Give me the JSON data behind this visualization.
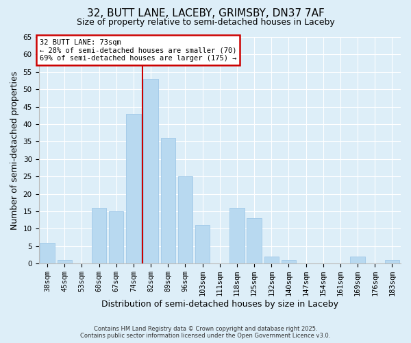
{
  "title": "32, BUTT LANE, LACEBY, GRIMSBY, DN37 7AF",
  "subtitle": "Size of property relative to semi-detached houses in Laceby",
  "xlabel": "Distribution of semi-detached houses by size in Laceby",
  "ylabel": "Number of semi-detached properties",
  "bar_labels": [
    "38sqm",
    "45sqm",
    "53sqm",
    "60sqm",
    "67sqm",
    "74sqm",
    "82sqm",
    "89sqm",
    "96sqm",
    "103sqm",
    "111sqm",
    "118sqm",
    "125sqm",
    "132sqm",
    "140sqm",
    "147sqm",
    "154sqm",
    "161sqm",
    "169sqm",
    "176sqm",
    "183sqm"
  ],
  "bar_values": [
    6,
    1,
    0,
    16,
    15,
    43,
    53,
    36,
    25,
    11,
    0,
    16,
    13,
    2,
    1,
    0,
    0,
    0,
    2,
    0,
    1
  ],
  "bar_color": "#b8d9f0",
  "bar_edge_color": "#9fc8e8",
  "vline_color": "#cc0000",
  "vline_bar_index": 5,
  "annotation_title": "32 BUTT LANE: 73sqm",
  "annotation_line1": "← 28% of semi-detached houses are smaller (70)",
  "annotation_line2": "69% of semi-detached houses are larger (175) →",
  "annotation_box_facecolor": "#ffffff",
  "annotation_box_edgecolor": "#cc0000",
  "ylim": [
    0,
    65
  ],
  "yticks": [
    0,
    5,
    10,
    15,
    20,
    25,
    30,
    35,
    40,
    45,
    50,
    55,
    60,
    65
  ],
  "background_color": "#ddeef8",
  "plot_bg_color": "#ddeef8",
  "grid_color": "#ffffff",
  "footer1": "Contains HM Land Registry data © Crown copyright and database right 2025.",
  "footer2": "Contains public sector information licensed under the Open Government Licence v3.0.",
  "title_fontsize": 11,
  "subtitle_fontsize": 9,
  "axis_label_fontsize": 9,
  "tick_fontsize": 7.5,
  "annotation_fontsize": 7.5,
  "footer_fontsize": 6
}
